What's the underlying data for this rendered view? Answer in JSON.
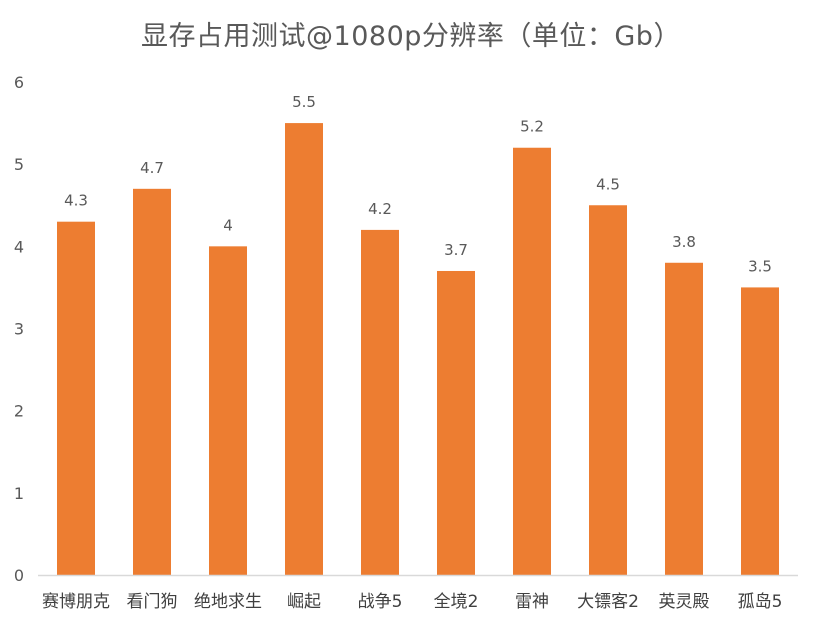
{
  "chart_data": {
    "type": "bar",
    "title": "显存占用测试@1080p分辨率（单位：Gb）",
    "xlabel": "",
    "ylabel": "",
    "categories": [
      "赛博朋克",
      "看门狗",
      "绝地求生",
      "崛起",
      "战争5",
      "全境2",
      "雷神",
      "大镖客2",
      "英灵殿",
      "孤岛5"
    ],
    "series": [
      {
        "values": [
          4.3,
          4.7,
          4,
          5.5,
          4.2,
          3.7,
          5.2,
          4.5,
          3.8,
          3.5
        ]
      }
    ],
    "value_labels": [
      "4.3",
      "4.7",
      "4",
      "5.5",
      "4.2",
      "3.7",
      "5.2",
      "4.5",
      "3.8",
      "3.5"
    ],
    "ylim": [
      0,
      6
    ],
    "yticks": [
      0,
      1,
      2,
      3,
      4,
      5,
      6
    ],
    "grid": false,
    "legend": "none",
    "bar_color": "#ED7D31",
    "axis_color": "#D9D9D9",
    "text_color": "#595959"
  }
}
